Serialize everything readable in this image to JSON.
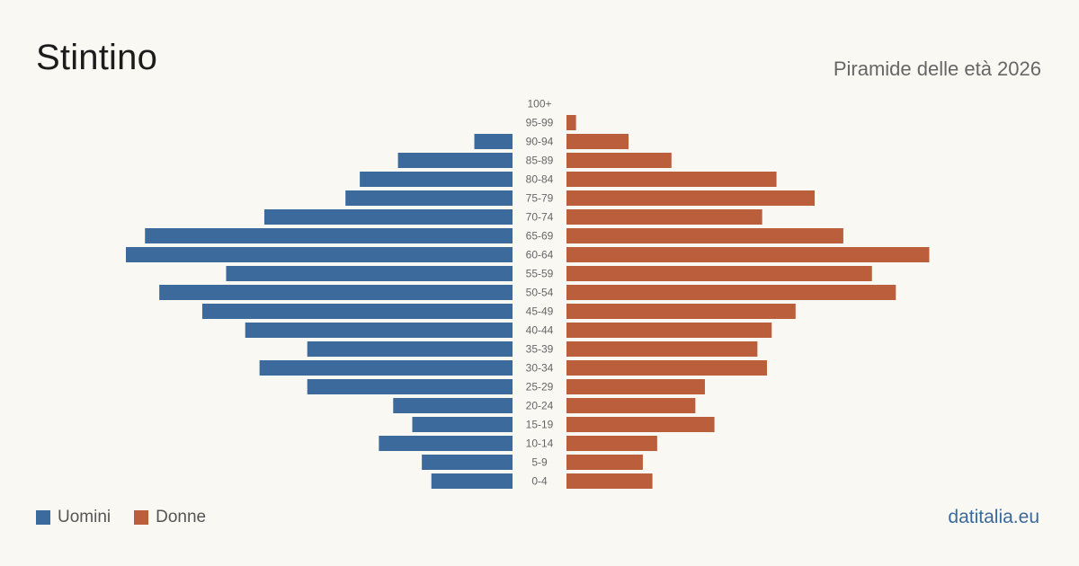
{
  "title": "Stintino",
  "subtitle": "Piramide delle età 2026",
  "brand": "datitalia.eu",
  "colors": {
    "men": "#3c6a9c",
    "women": "#ba5e3c"
  },
  "chart_data": {
    "type": "bar",
    "orientation": "horizontal-pyramid",
    "categories": [
      "100+",
      "95-99",
      "90-94",
      "85-89",
      "80-84",
      "75-79",
      "70-74",
      "65-69",
      "60-64",
      "55-59",
      "50-54",
      "45-49",
      "40-44",
      "35-39",
      "30-34",
      "25-29",
      "20-24",
      "15-19",
      "10-14",
      "5-9",
      "0-4"
    ],
    "series": [
      {
        "name": "Uomini",
        "side": "left",
        "values": [
          0,
          0,
          8,
          24,
          32,
          35,
          52,
          77,
          81,
          60,
          74,
          65,
          56,
          43,
          53,
          43,
          25,
          21,
          28,
          19,
          17
        ]
      },
      {
        "name": "Donne",
        "side": "right",
        "values": [
          0,
          2,
          13,
          22,
          44,
          52,
          41,
          58,
          76,
          64,
          69,
          48,
          43,
          40,
          42,
          29,
          27,
          31,
          19,
          16,
          18
        ]
      }
    ],
    "max_value": 81,
    "legend_position": "bottom-left",
    "grid": false
  }
}
